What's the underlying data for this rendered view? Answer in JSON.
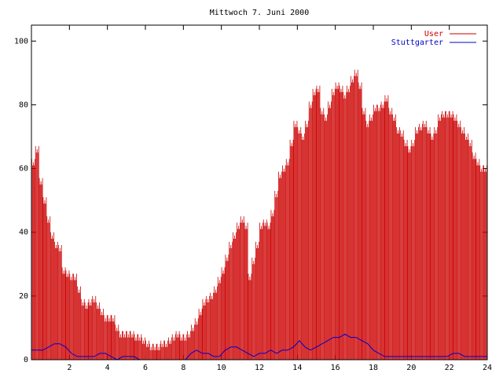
{
  "chart_data": {
    "type": "bar",
    "title": "Mittwoch 7. Juni 2000",
    "xlabel": "",
    "ylabel": "",
    "xlim": [
      0,
      24
    ],
    "ylim": [
      0,
      105
    ],
    "xticks": [
      "2",
      "4",
      "6",
      "8",
      "10",
      "12",
      "14",
      "16",
      "18",
      "20",
      "22",
      "24"
    ],
    "yticks": [
      "0",
      "20",
      "40",
      "60",
      "80",
      "100"
    ],
    "legend_position": "top-right",
    "colors": {
      "user": "#cc0000",
      "stuttgarter": "#0000cc"
    },
    "series": [
      {
        "name": "User",
        "style": "impulses",
        "x": [
          0.1,
          0.3,
          0.5,
          0.7,
          0.9,
          1.1,
          1.3,
          1.5,
          1.7,
          1.9,
          2.1,
          2.3,
          2.5,
          2.7,
          2.9,
          3.1,
          3.3,
          3.5,
          3.7,
          3.9,
          4.1,
          4.3,
          4.5,
          4.7,
          4.9,
          5.1,
          5.3,
          5.5,
          5.7,
          5.9,
          6.1,
          6.3,
          6.5,
          6.7,
          6.9,
          7.1,
          7.3,
          7.5,
          7.7,
          7.9,
          8.1,
          8.3,
          8.5,
          8.7,
          8.9,
          9.1,
          9.3,
          9.5,
          9.7,
          9.9,
          10.1,
          10.3,
          10.5,
          10.7,
          10.9,
          11.1,
          11.3,
          11.5,
          11.7,
          11.9,
          12.1,
          12.3,
          12.5,
          12.7,
          12.9,
          13.1,
          13.3,
          13.5,
          13.7,
          13.9,
          14.1,
          14.3,
          14.5,
          14.7,
          14.9,
          15.1,
          15.3,
          15.5,
          15.7,
          15.9,
          16.1,
          16.3,
          16.5,
          16.7,
          16.9,
          17.1,
          17.3,
          17.5,
          17.7,
          17.9,
          18.1,
          18.3,
          18.5,
          18.7,
          18.9,
          19.1,
          19.3,
          19.5,
          19.7,
          19.9,
          20.1,
          20.3,
          20.5,
          20.7,
          20.9,
          21.1,
          21.3,
          21.5,
          21.7,
          21.9,
          22.1,
          22.3,
          22.5,
          22.7,
          22.9,
          23.1,
          23.3,
          23.5,
          23.7,
          23.9
        ],
        "values": [
          62,
          66,
          56,
          50,
          44,
          39,
          36,
          35,
          28,
          27,
          26,
          26,
          22,
          18,
          17,
          18,
          19,
          17,
          15,
          13,
          13,
          13,
          10,
          8,
          8,
          8,
          8,
          7,
          7,
          6,
          5,
          4,
          4,
          4,
          5,
          5,
          6,
          7,
          8,
          7,
          7,
          8,
          10,
          12,
          15,
          18,
          19,
          20,
          22,
          25,
          28,
          32,
          36,
          39,
          42,
          44,
          42,
          26,
          31,
          36,
          42,
          43,
          42,
          46,
          52,
          58,
          60,
          62,
          68,
          74,
          72,
          70,
          74,
          80,
          84,
          85,
          78,
          76,
          80,
          84,
          86,
          85,
          83,
          85,
          88,
          90,
          86,
          78,
          74,
          76,
          79,
          79,
          80,
          82,
          78,
          76,
          72,
          71,
          68,
          66,
          68,
          72,
          73,
          74,
          72,
          70,
          72,
          76,
          77,
          77,
          77,
          76,
          74,
          72,
          70,
          68,
          64,
          62,
          60,
          60
        ]
      },
      {
        "name": "Stuttgarter",
        "style": "line",
        "x": [
          0.0,
          0.3,
          0.6,
          0.9,
          1.2,
          1.5,
          1.8,
          2.1,
          2.4,
          2.7,
          3.0,
          3.3,
          3.6,
          3.9,
          4.2,
          4.5,
          4.8,
          5.1,
          5.4,
          5.7,
          6.0,
          6.3,
          6.6,
          6.9,
          7.2,
          7.5,
          7.8,
          8.1,
          8.4,
          8.7,
          9.0,
          9.3,
          9.6,
          9.9,
          10.2,
          10.5,
          10.8,
          11.1,
          11.4,
          11.7,
          12.0,
          12.3,
          12.6,
          12.9,
          13.2,
          13.5,
          13.8,
          14.1,
          14.4,
          14.7,
          15.0,
          15.3,
          15.6,
          15.9,
          16.2,
          16.5,
          16.8,
          17.1,
          17.4,
          17.7,
          18.0,
          18.3,
          18.6,
          18.9,
          19.2,
          19.5,
          19.8,
          20.1,
          20.4,
          20.7,
          21.0,
          21.3,
          21.6,
          21.9,
          22.2,
          22.5,
          22.8,
          23.1,
          23.4,
          23.7,
          24.0
        ],
        "values": [
          3,
          3,
          3,
          4,
          5,
          5,
          4,
          2,
          1,
          1,
          1,
          1,
          2,
          2,
          1,
          0,
          1,
          1,
          1,
          0,
          0,
          0,
          0,
          0,
          0,
          0,
          0,
          0,
          2,
          3,
          2,
          2,
          1,
          1,
          3,
          4,
          4,
          3,
          2,
          1,
          2,
          2,
          3,
          2,
          3,
          3,
          4,
          6,
          4,
          3,
          4,
          5,
          6,
          7,
          7,
          8,
          7,
          7,
          6,
          5,
          3,
          2,
          1,
          1,
          1,
          1,
          1,
          1,
          1,
          1,
          1,
          1,
          1,
          1,
          2,
          2,
          1,
          1,
          1,
          1,
          1
        ]
      }
    ]
  }
}
